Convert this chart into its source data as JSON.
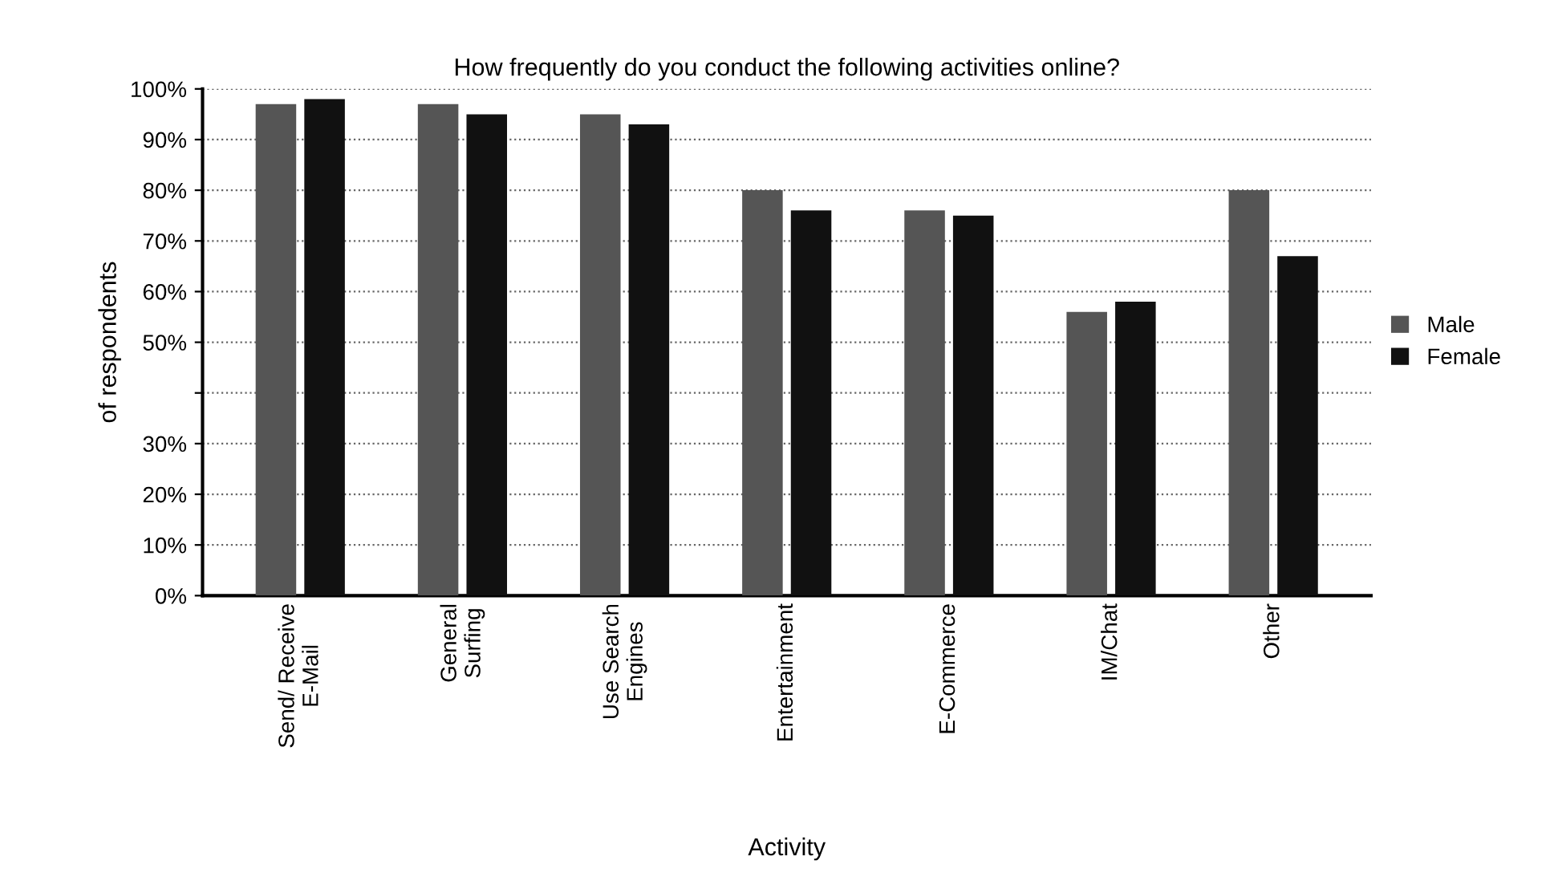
{
  "chart_data": {
    "type": "bar",
    "title": "How frequently do you conduct the following activities online?",
    "xlabel": "Activity",
    "ylabel": "of respondents",
    "categories": [
      "Send/ Receive\nE-Mail",
      "General\nSurfing",
      "Use Search\nEngines",
      "Entertainment",
      "E-Commerce",
      "IM/Chat",
      "Other"
    ],
    "series": [
      {
        "name": "Male",
        "color": "#555555",
        "values": [
          97,
          97,
          95,
          80,
          76,
          56,
          80
        ]
      },
      {
        "name": "Female",
        "color": "#111111",
        "values": [
          98,
          95,
          93,
          76,
          75,
          58,
          67
        ]
      }
    ],
    "ylim": [
      0,
      100
    ],
    "yticks": [
      {
        "value": 0,
        "label": "0%"
      },
      {
        "value": 10,
        "label": "10%"
      },
      {
        "value": 20,
        "label": "20%"
      },
      {
        "value": 30,
        "label": "30%"
      },
      {
        "value": 40,
        "label": null
      },
      {
        "value": 50,
        "label": "50%"
      },
      {
        "value": 60,
        "label": "60%"
      },
      {
        "value": 70,
        "label": "70%"
      },
      {
        "value": 80,
        "label": "80%"
      },
      {
        "value": 90,
        "label": "90%"
      },
      {
        "value": 100,
        "label": "100%"
      }
    ],
    "grid": "y",
    "legend": "right"
  }
}
